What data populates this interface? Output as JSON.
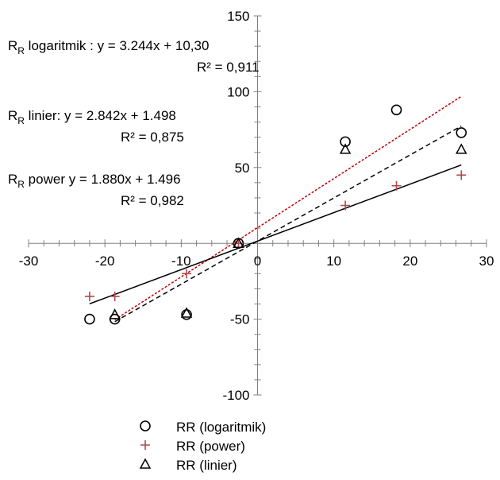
{
  "chart_data": {
    "type": "scatter",
    "xlim": [
      -30,
      30
    ],
    "ylim": [
      -100,
      150
    ],
    "x_ticks": [
      -30,
      -20,
      -10,
      0,
      10,
      20,
      30
    ],
    "y_ticks": [
      -100,
      -50,
      0,
      50,
      100,
      150
    ],
    "series": [
      {
        "name": "RR (logaritmik)",
        "marker": "circle",
        "color": "#000000",
        "points": [
          [
            -22,
            -50
          ],
          [
            -18.7,
            -50
          ],
          [
            -9.3,
            -47
          ],
          [
            -2.5,
            0
          ],
          [
            11.5,
            67
          ],
          [
            18.2,
            88
          ],
          [
            26.7,
            73
          ]
        ]
      },
      {
        "name": "RR (power)",
        "marker": "plus",
        "color": "#b04a4a",
        "points": [
          [
            -22,
            -35
          ],
          [
            -18.7,
            -35
          ],
          [
            -9.3,
            -20
          ],
          [
            -2.5,
            0
          ],
          [
            11.5,
            25
          ],
          [
            18.2,
            38
          ],
          [
            26.7,
            45
          ]
        ]
      },
      {
        "name": "RR (linier)",
        "marker": "triangle",
        "color": "#000000",
        "points": [
          [
            -18.7,
            -47
          ],
          [
            -9.3,
            -46
          ],
          [
            -2.5,
            0
          ],
          [
            11.5,
            62
          ],
          [
            26.7,
            62
          ]
        ]
      }
    ],
    "trendlines": [
      {
        "style": "dotted",
        "color": "#c00000",
        "x_range": [
          -18.7,
          26.7
        ],
        "slope": 3.244,
        "intercept": 10.3
      },
      {
        "style": "dashed",
        "color": "#000000",
        "x_range": [
          -18.7,
          26.7
        ],
        "slope": 2.842,
        "intercept": 1.498
      },
      {
        "style": "solid",
        "color": "#000000",
        "x_range": [
          -22,
          26.7
        ],
        "slope": 1.88,
        "intercept": 1.496
      }
    ],
    "annotations": [
      {
        "sub": "R",
        "rest": " logaritmik : y   = 3.244x + 10,30",
        "r2": "R² = 0,911"
      },
      {
        "sub": "R",
        "rest": " linier: y   = 2.842x + 1.498",
        "r2": "R² = 0,875"
      },
      {
        "sub": "R",
        "rest": " power y  = 1.880x + 1.496",
        "r2": "R² = 0,982"
      }
    ],
    "legend_position": "bottom-center",
    "grid": false
  },
  "annotation_prefix": "R"
}
